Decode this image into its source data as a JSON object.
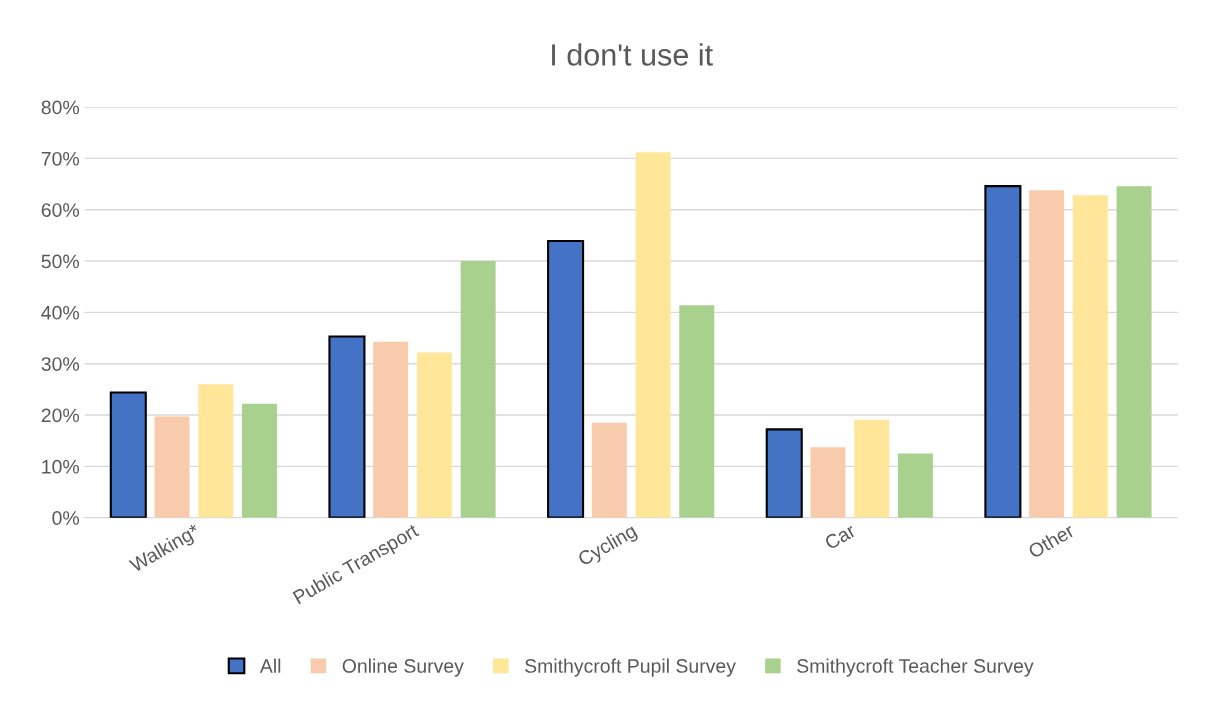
{
  "chart_data": {
    "type": "bar",
    "title": "I don't use it",
    "categories": [
      "Walking*",
      "Public Transport",
      "Cycling",
      "Car",
      "Other"
    ],
    "series": [
      {
        "name": "All",
        "color": "#4472c4",
        "values": [
          24.4,
          35.3,
          53.9,
          17.2,
          64.6
        ]
      },
      {
        "name": "Online Survey",
        "color": "#f8cbad",
        "values": [
          19.7,
          34.3,
          18.5,
          13.7,
          63.8
        ]
      },
      {
        "name": "Smithycroft Pupil Survey",
        "color": "#ffe699",
        "values": [
          26.0,
          32.2,
          71.2,
          19.1,
          62.8
        ]
      },
      {
        "name": "Smithycroft Teacher Survey",
        "color": "#a9d18e",
        "values": [
          22.2,
          50.0,
          41.4,
          12.5,
          64.6
        ]
      }
    ],
    "ylim": [
      0,
      80
    ],
    "yticks": [
      {
        "value": 0,
        "label": "0%"
      },
      {
        "value": 10,
        "label": "10%"
      },
      {
        "value": 20,
        "label": "20%"
      },
      {
        "value": 30,
        "label": "30%"
      },
      {
        "value": 40,
        "label": "40%"
      },
      {
        "value": 50,
        "label": "50%"
      },
      {
        "value": 60,
        "label": "60%"
      },
      {
        "value": 70,
        "label": "70%"
      },
      {
        "value": 80,
        "label": "80%"
      }
    ],
    "grid": "y",
    "legend": "bottom"
  }
}
